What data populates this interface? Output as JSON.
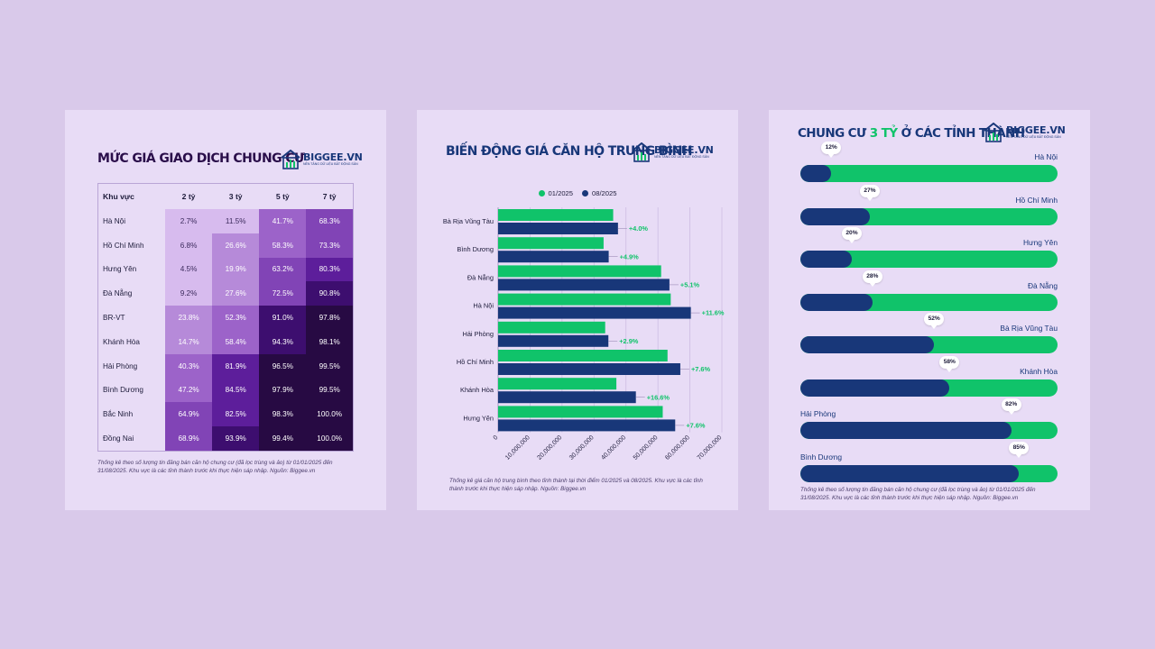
{
  "brand": {
    "name": "BIGGEE.VN",
    "tagline": "NỀN TẢNG DỮ LIỆU BẤT ĐỘNG SẢN"
  },
  "colors": {
    "background": "#d9c9ea",
    "card": "#e8dcf6",
    "navy": "#183779",
    "green": "#10c36a",
    "purple_dark": "#280c42"
  },
  "chart_data": [
    {
      "type": "heatmap",
      "title": "MỨC GIÁ GIAO DỊCH CHUNG CƯ",
      "corner_label": "Khu vực",
      "columns": [
        "2 tỷ",
        "3 tỷ",
        "5 tỷ",
        "7 tỷ"
      ],
      "rows": [
        "Hà Nội",
        "Hồ Chí Minh",
        "Hưng Yên",
        "Đà Nẵng",
        "BR-VT",
        "Khánh Hòa",
        "Hải Phòng",
        "Bình Dương",
        "Bắc Ninh",
        "Đồng Nai"
      ],
      "values": [
        [
          2.7,
          11.5,
          41.7,
          68.3
        ],
        [
          6.8,
          26.6,
          58.3,
          73.3
        ],
        [
          4.5,
          19.9,
          63.2,
          80.3
        ],
        [
          9.2,
          27.6,
          72.5,
          90.8
        ],
        [
          23.8,
          52.3,
          91.0,
          97.8
        ],
        [
          14.7,
          58.4,
          94.3,
          98.1
        ],
        [
          40.3,
          81.9,
          96.5,
          99.5
        ],
        [
          47.2,
          84.5,
          97.9,
          99.5
        ],
        [
          64.9,
          82.5,
          98.3,
          100.0
        ],
        [
          68.9,
          93.9,
          99.4,
          100.0
        ]
      ],
      "note": "Thống kê theo số lượng tin đăng bán căn hộ chung cư (đã lọc trùng và ảo) từ 01/01/2025 đến 31/08/2025. Khu vực là các tỉnh thành trước khi thực hiện sáp nhập. Nguồn: Biggee.vn"
    },
    {
      "type": "bar",
      "title": "BIẾN ĐỘNG GIÁ CĂN HỘ TRUNG BÌNH",
      "categories": [
        "Bà Rịa Vũng Tàu",
        "Bình Dương",
        "Đà Nẵng",
        "Hà Nội",
        "Hải Phòng",
        "Hồ Chí Minh",
        "Khánh Hòa",
        "Hưng Yên"
      ],
      "series": [
        {
          "name": "01/2025",
          "values": [
            36000000,
            33000000,
            51000000,
            54000000,
            33500000,
            53000000,
            37000000,
            51500000
          ]
        },
        {
          "name": "08/2025",
          "values": [
            37500000,
            34600000,
            53600000,
            60300000,
            34500000,
            57000000,
            43100000,
            55400000
          ]
        }
      ],
      "changes": [
        "+4.0%",
        "+4.9%",
        "+5.1%",
        "+11.6%",
        "+2.9%",
        "+7.6%",
        "+16.6%",
        "+7.6%"
      ],
      "x_ticks": [
        "0",
        "10,000,000",
        "20,000,000",
        "30,000,000",
        "40,000,000",
        "50,000,000",
        "60,000,000",
        "70,000,000"
      ],
      "xlim": [
        0,
        70000000
      ],
      "note": "Thống kê giá căn hộ trung bình theo tỉnh thành tại thời điểm 01/2025 và 08/2025. Khu vực là các tỉnh thành trước khi thực hiện sáp nhập. Nguồn: Biggee.vn"
    },
    {
      "type": "bar",
      "title_parts": [
        "CHUNG CƯ ",
        "3 TỶ",
        " Ở CÁC TỈNH THÀNH"
      ],
      "categories": [
        "Hà Nội",
        "Hồ Chí Minh",
        "Hưng Yên",
        "Đà Nẵng",
        "Bà Rịa Vũng Tàu",
        "Khánh Hòa",
        "Hải Phòng",
        "Bình Dương"
      ],
      "values": [
        12,
        27,
        20,
        28,
        52,
        58,
        82,
        85
      ],
      "labels": [
        "12%",
        "27%",
        "20%",
        "28%",
        "52%",
        "58%",
        "82%",
        "85%"
      ],
      "ylim": [
        0,
        100
      ],
      "note": "Thống kê theo số lượng tin đăng bán căn hộ chung cư (đã lọc trùng và ảo) từ 01/01/2025 đến 31/08/2025. Khu vực là các tỉnh thành trước khi thực hiện sáp nhập. Nguồn: Biggee.vn"
    }
  ]
}
